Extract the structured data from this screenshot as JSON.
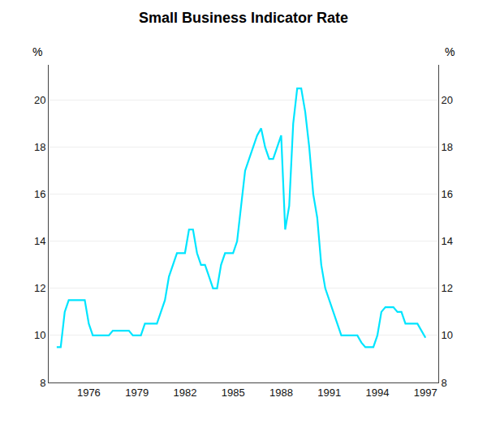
{
  "chart_data": {
    "type": "line",
    "title": "Small Business Indicator Rate",
    "ylabel": "%",
    "y2label": "%",
    "x": [
      1974.0,
      1974.25,
      1974.5,
      1974.75,
      1975.0,
      1975.25,
      1975.5,
      1975.75,
      1976.0,
      1976.25,
      1976.5,
      1976.75,
      1977.0,
      1977.25,
      1977.5,
      1977.75,
      1978.0,
      1978.25,
      1978.5,
      1978.75,
      1979.0,
      1979.25,
      1979.5,
      1979.75,
      1980.0,
      1980.25,
      1980.5,
      1980.75,
      1981.0,
      1981.25,
      1981.5,
      1981.75,
      1982.0,
      1982.25,
      1982.5,
      1982.75,
      1983.0,
      1983.25,
      1983.5,
      1983.75,
      1984.0,
      1984.25,
      1984.5,
      1984.75,
      1985.0,
      1985.25,
      1985.5,
      1985.75,
      1986.0,
      1986.25,
      1986.5,
      1986.75,
      1987.0,
      1987.25,
      1987.5,
      1987.75,
      1988.0,
      1988.25,
      1988.5,
      1988.75,
      1989.0,
      1989.25,
      1989.5,
      1989.75,
      1990.0,
      1990.25,
      1990.5,
      1990.75,
      1991.0,
      1991.25,
      1991.5,
      1991.75,
      1992.0,
      1992.25,
      1992.5,
      1992.75,
      1993.0,
      1993.25,
      1993.5,
      1993.75,
      1994.0,
      1994.25,
      1994.5,
      1994.75,
      1995.0,
      1995.25,
      1995.5,
      1995.75,
      1996.0,
      1996.25,
      1996.5,
      1996.75,
      1997.0
    ],
    "values": [
      9.5,
      9.5,
      11.0,
      11.5,
      11.5,
      11.5,
      11.5,
      11.5,
      10.5,
      10.0,
      10.0,
      10.0,
      10.0,
      10.0,
      10.2,
      10.2,
      10.2,
      10.2,
      10.2,
      10.0,
      10.0,
      10.0,
      10.5,
      10.5,
      10.5,
      10.5,
      11.0,
      11.5,
      12.5,
      13.0,
      13.5,
      13.5,
      13.5,
      14.5,
      14.5,
      13.5,
      13.0,
      13.0,
      12.5,
      12.0,
      12.0,
      13.0,
      13.5,
      13.5,
      13.5,
      14.0,
      15.5,
      17.0,
      17.5,
      18.0,
      18.5,
      18.8,
      18.0,
      17.5,
      17.5,
      18.0,
      18.5,
      14.5,
      15.5,
      19.0,
      20.5,
      20.5,
      19.5,
      18.0,
      16.0,
      15.0,
      13.0,
      12.0,
      11.5,
      11.0,
      10.5,
      10.0,
      10.0,
      10.0,
      10.0,
      10.0,
      9.7,
      9.5,
      9.5,
      9.5,
      10.0,
      11.0,
      11.2,
      11.2,
      11.2,
      11.0,
      11.0,
      10.5,
      10.5,
      10.5,
      10.5,
      10.2,
      9.9
    ],
    "color": "#00e5ff",
    "xlim": [
      1973.5,
      1997.8
    ],
    "xticks": [
      1976,
      1979,
      1982,
      1985,
      1988,
      1991,
      1994,
      1997
    ],
    "ylim": [
      8,
      21.5
    ],
    "yticks": [
      8,
      10,
      12,
      14,
      16,
      18,
      20
    ],
    "y2lim": [
      8,
      21.5
    ],
    "y2ticks": [
      8,
      10,
      12,
      14,
      16,
      18,
      20
    ],
    "grid": "y"
  }
}
